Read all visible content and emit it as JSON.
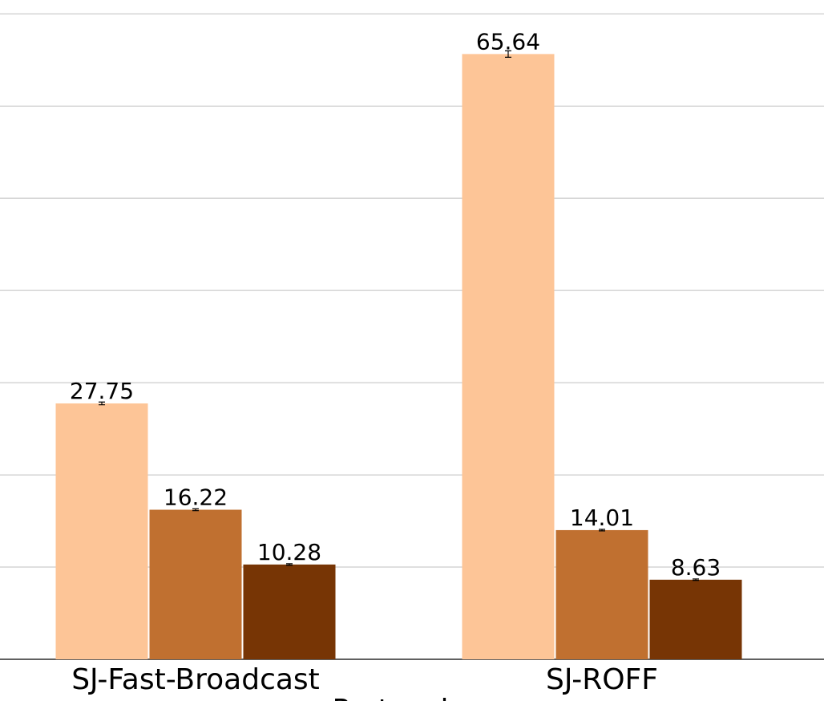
{
  "chart_data": {
    "type": "bar",
    "xlabel": "Protocol",
    "categories": [
      "SJ-Fast-Broadcast",
      "SJ-ROFF"
    ],
    "series": [
      {
        "color": "#fdc597",
        "values": [
          27.75,
          65.64
        ],
        "errors": [
          0.15,
          0.35
        ]
      },
      {
        "color": "#c07030",
        "values": [
          16.22,
          14.01
        ],
        "errors": [
          0.1,
          0.08
        ]
      },
      {
        "color": "#773505",
        "values": [
          10.28,
          8.63
        ],
        "errors": [
          0.08,
          0.08
        ]
      }
    ],
    "ylim": [
      0,
      71.5
    ],
    "yticks": [
      10,
      20,
      30,
      40,
      50,
      60,
      70
    ],
    "grid": true
  }
}
